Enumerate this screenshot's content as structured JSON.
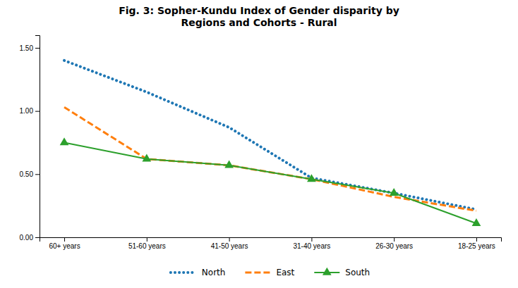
{
  "chart_data": {
    "type": "line",
    "title": "Fig. 3: Sopher-Kundu Index of Gender disparity by\nRegions and Cohorts - Rural",
    "categories": [
      "60+ years",
      "51-60 years",
      "41-50 years",
      "31-40 years",
      "26-30 years",
      "18-25 years"
    ],
    "series": [
      {
        "name": "North",
        "values": [
          1.4,
          1.15,
          0.87,
          0.47,
          0.35,
          0.22
        ],
        "line_style": "dotted"
      },
      {
        "name": "East",
        "values": [
          1.03,
          0.62,
          0.57,
          0.46,
          0.32,
          0.21
        ],
        "line_style": "dashed"
      },
      {
        "name": "South",
        "values": [
          0.75,
          0.62,
          0.57,
          0.46,
          0.35,
          0.11
        ],
        "line_style": "solid",
        "marker": "triangle"
      }
    ],
    "ylim": [
      0.0,
      1.6
    ],
    "yticks": [
      {
        "value": 0.0,
        "label": "0.00"
      },
      {
        "value": 0.5,
        "label": "0.50"
      },
      {
        "value": 1.0,
        "label": "1.00"
      },
      {
        "value": 1.5,
        "label": "1.50"
      }
    ],
    "grid": false,
    "legend": "bottom"
  }
}
